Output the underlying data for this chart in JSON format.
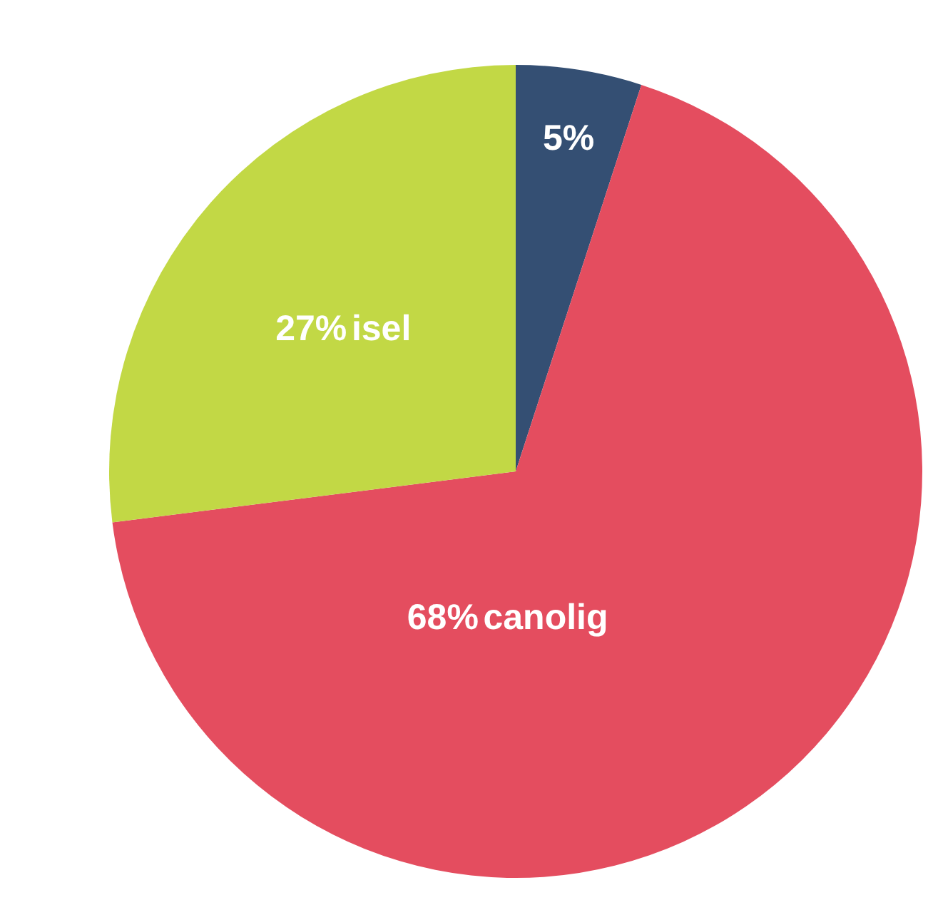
{
  "chart_data": {
    "type": "pie",
    "categories": [
      null,
      "canolig",
      "isel"
    ],
    "values": [
      5,
      68,
      27
    ],
    "colors": [
      "#344f73",
      "#e44d5f",
      "#c2d845"
    ],
    "value_labels": [
      "5%",
      "68%",
      "27%"
    ]
  }
}
